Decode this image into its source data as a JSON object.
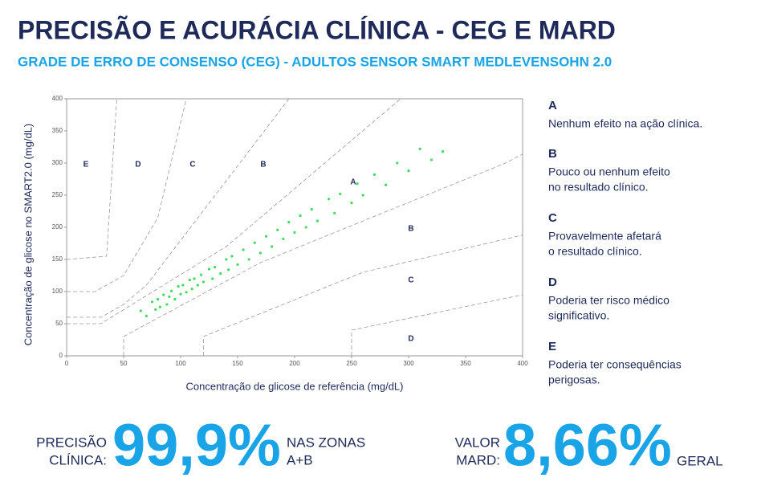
{
  "header": {
    "title": "PRECISÃO E ACURÁCIA CLÍNICA - CEG E MARD",
    "subtitle": "GRADE DE ERRO DE CONSENSO (CEG) - ADULTOS SENSOR SMART MEDLEVENSOHN 2.0"
  },
  "chart_data": {
    "type": "scatter",
    "xlabel": "Concentração de glicose de referência (mg/dL)",
    "ylabel": "Concentração de glicose no SMART2.0 (mg/dL)",
    "xlim": [
      0,
      400
    ],
    "ylim": [
      0,
      400
    ],
    "xticks": [
      0,
      50,
      100,
      150,
      200,
      250,
      300,
      350,
      400
    ],
    "yticks": [
      0,
      50,
      100,
      150,
      200,
      250,
      300,
      350,
      400
    ],
    "series": [
      {
        "color": "#3ddc5a",
        "x": [
          65,
          70,
          75,
          78,
          80,
          82,
          85,
          88,
          90,
          92,
          95,
          98,
          100,
          102,
          105,
          108,
          110,
          112,
          115,
          118,
          120,
          125,
          128,
          130,
          135,
          140,
          142,
          145,
          150,
          155,
          160,
          165,
          170,
          175,
          180,
          185,
          190,
          195,
          200,
          205,
          210,
          215,
          220,
          230,
          235,
          240,
          250,
          255,
          260,
          270,
          280,
          290,
          300,
          310,
          320,
          330
        ],
        "values": [
          70,
          62,
          84,
          72,
          88,
          76,
          95,
          80,
          92,
          101,
          88,
          108,
          96,
          110,
          99,
          118,
          104,
          120,
          110,
          126,
          115,
          135,
          120,
          138,
          128,
          150,
          134,
          155,
          142,
          165,
          150,
          176,
          160,
          186,
          170,
          196,
          182,
          208,
          192,
          218,
          200,
          228,
          210,
          244,
          222,
          252,
          238,
          268,
          250,
          282,
          266,
          300,
          288,
          322,
          305,
          318
        ]
      }
    ],
    "zone_lines": [
      {
        "x": [
          0,
          30,
          140,
          293
        ],
        "y": [
          50,
          50,
          170,
          400
        ]
      },
      {
        "x": [
          50,
          50,
          170,
          385,
          400
        ],
        "y": [
          0,
          30,
          145,
          300,
          314
        ]
      },
      {
        "x": [
          0,
          30,
          50,
          70,
          195
        ],
        "y": [
          60,
          60,
          80,
          110,
          400
        ]
      },
      {
        "x": [
          120,
          120,
          260,
          400
        ],
        "y": [
          0,
          30,
          130,
          188
        ]
      },
      {
        "x": [
          0,
          25,
          50,
          80,
          105
        ],
        "y": [
          100,
          100,
          125,
          215,
          400
        ]
      },
      {
        "x": [
          250,
          250,
          400
        ],
        "y": [
          0,
          40,
          95
        ]
      },
      {
        "x": [
          0,
          35,
          44
        ],
        "y": [
          150,
          155,
          400
        ]
      }
    ],
    "zone_labels": [
      "E",
      "D",
      "C",
      "B",
      "A",
      "B",
      "C",
      "D"
    ]
  },
  "legend": {
    "items": [
      {
        "letter": "A",
        "lines": [
          "Nenhum efeito na ação clínica."
        ]
      },
      {
        "letter": "B",
        "lines": [
          "Pouco ou nenhum efeito",
          "no resultado clínico."
        ]
      },
      {
        "letter": "C",
        "lines": [
          "Provavelmente afetará",
          "o resultado clínico."
        ]
      },
      {
        "letter": "D",
        "lines": [
          "Poderia ter risco médico",
          "significativo."
        ]
      },
      {
        "letter": "E",
        "lines": [
          "Poderia ter consequências",
          "perigosas."
        ]
      }
    ]
  },
  "stats": [
    {
      "label_lines": [
        "PRECISÃO",
        "CLÍNICA:"
      ],
      "value": "99,9%",
      "note_lines": [
        "NAS ZONAS",
        "A+B"
      ]
    },
    {
      "label_lines": [
        "VALOR",
        "MARD:"
      ],
      "value": "8,66%",
      "note_lines": [
        "GERAL"
      ]
    }
  ]
}
